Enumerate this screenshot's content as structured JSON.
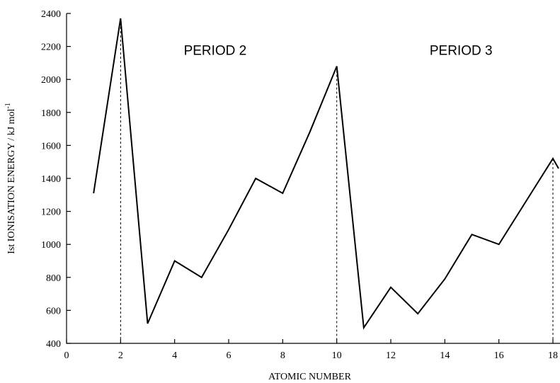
{
  "chart_data": {
    "type": "line",
    "xlabel": "ATOMIC NUMBER",
    "ylabel": "Ist IONISATION ENERGY / kJ mol",
    "ylabel_superscript": "-1",
    "xlim": [
      0,
      18
    ],
    "ylim": [
      400,
      2400
    ],
    "xticks": [
      0,
      2,
      4,
      6,
      8,
      10,
      12,
      14,
      16,
      18
    ],
    "yticks": [
      400,
      600,
      800,
      1000,
      1200,
      1400,
      1600,
      1800,
      2000,
      2200,
      2400
    ],
    "grid": false,
    "series": [
      {
        "x": [
          1,
          2,
          3,
          4,
          5,
          6,
          7,
          8,
          9,
          10,
          11,
          12,
          13,
          14,
          15,
          16,
          17,
          18,
          18.3
        ],
        "y": [
          1310,
          2370,
          520,
          900,
          800,
          1090,
          1400,
          1310,
          1680,
          2080,
          495,
          740,
          580,
          790,
          1060,
          1000,
          1260,
          1520,
          1460
        ]
      }
    ],
    "drop_lines_x": [
      2,
      10,
      18
    ],
    "annotations": [
      {
        "text": "PERIOD 2",
        "x": 5.5,
        "y": 2150
      },
      {
        "text": "PERIOD 3",
        "x": 14.6,
        "y": 2150
      }
    ]
  }
}
